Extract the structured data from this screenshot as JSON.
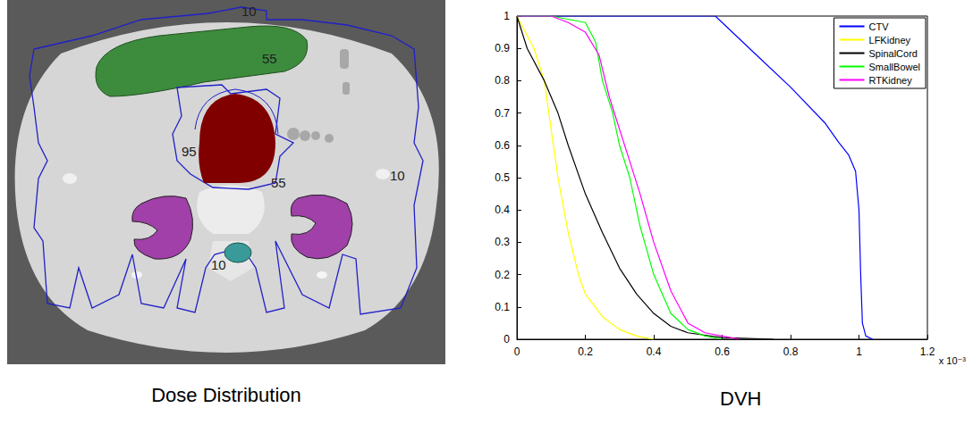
{
  "dose_distribution": {
    "caption": "Dose Distribution",
    "isodose_labels": [
      10,
      55,
      95,
      55,
      10,
      10
    ]
  },
  "chart_data": {
    "type": "line",
    "title": "DVH",
    "annotations": [
      "x 10⁻³"
    ],
    "xlim": [
      0,
      1.2
    ],
    "xticks": [
      0,
      0.2,
      0.4,
      0.6,
      0.8,
      1,
      1.2
    ],
    "ylim": [
      0,
      1
    ],
    "yticks": [
      0,
      0.1,
      0.2,
      0.3,
      0.4,
      0.5,
      0.6,
      0.7,
      0.8,
      0.9,
      1
    ],
    "grid": false,
    "legend": "upper right",
    "series": [
      {
        "name": "CTV",
        "color": "#0000ff",
        "x": [
          0,
          0.58,
          0.6,
          0.7,
          0.8,
          0.9,
          0.94,
          0.97,
          0.99,
          1.0,
          1.005,
          1.01,
          1.02,
          1.04
        ],
        "values": [
          1,
          1,
          0.98,
          0.88,
          0.78,
          0.67,
          0.61,
          0.57,
          0.52,
          0.4,
          0.2,
          0.05,
          0.01,
          0
        ]
      },
      {
        "name": "LFKidney",
        "color": "#ffff00",
        "x": [
          0,
          0.05,
          0.08,
          0.1,
          0.12,
          0.15,
          0.18,
          0.2,
          0.25,
          0.3,
          0.35,
          0.4
        ],
        "values": [
          1,
          0.9,
          0.8,
          0.65,
          0.5,
          0.33,
          0.2,
          0.14,
          0.07,
          0.03,
          0.01,
          0
        ]
      },
      {
        "name": "SpinalCord",
        "color": "#000000",
        "x": [
          0,
          0.03,
          0.08,
          0.12,
          0.15,
          0.2,
          0.25,
          0.3,
          0.35,
          0.4,
          0.45,
          0.5,
          0.6,
          0.75
        ],
        "values": [
          1,
          0.9,
          0.8,
          0.7,
          0.6,
          0.45,
          0.33,
          0.22,
          0.14,
          0.08,
          0.04,
          0.02,
          0.005,
          0
        ]
      },
      {
        "name": "SmallBowel",
        "color": "#00ff00",
        "x": [
          0,
          0.1,
          0.2,
          0.23,
          0.25,
          0.28,
          0.3,
          0.33,
          0.36,
          0.4,
          0.45,
          0.5,
          0.55,
          0.6
        ],
        "values": [
          1,
          1,
          0.98,
          0.92,
          0.8,
          0.7,
          0.6,
          0.5,
          0.35,
          0.2,
          0.08,
          0.03,
          0.01,
          0
        ]
      },
      {
        "name": "RTKidney",
        "color": "#ff00ff",
        "x": [
          0,
          0.1,
          0.15,
          0.2,
          0.24,
          0.27,
          0.3,
          0.33,
          0.36,
          0.4,
          0.45,
          0.5,
          0.55,
          0.6,
          0.65
        ],
        "values": [
          1,
          1,
          0.98,
          0.95,
          0.88,
          0.75,
          0.65,
          0.55,
          0.45,
          0.3,
          0.15,
          0.05,
          0.02,
          0.01,
          0
        ]
      }
    ]
  }
}
